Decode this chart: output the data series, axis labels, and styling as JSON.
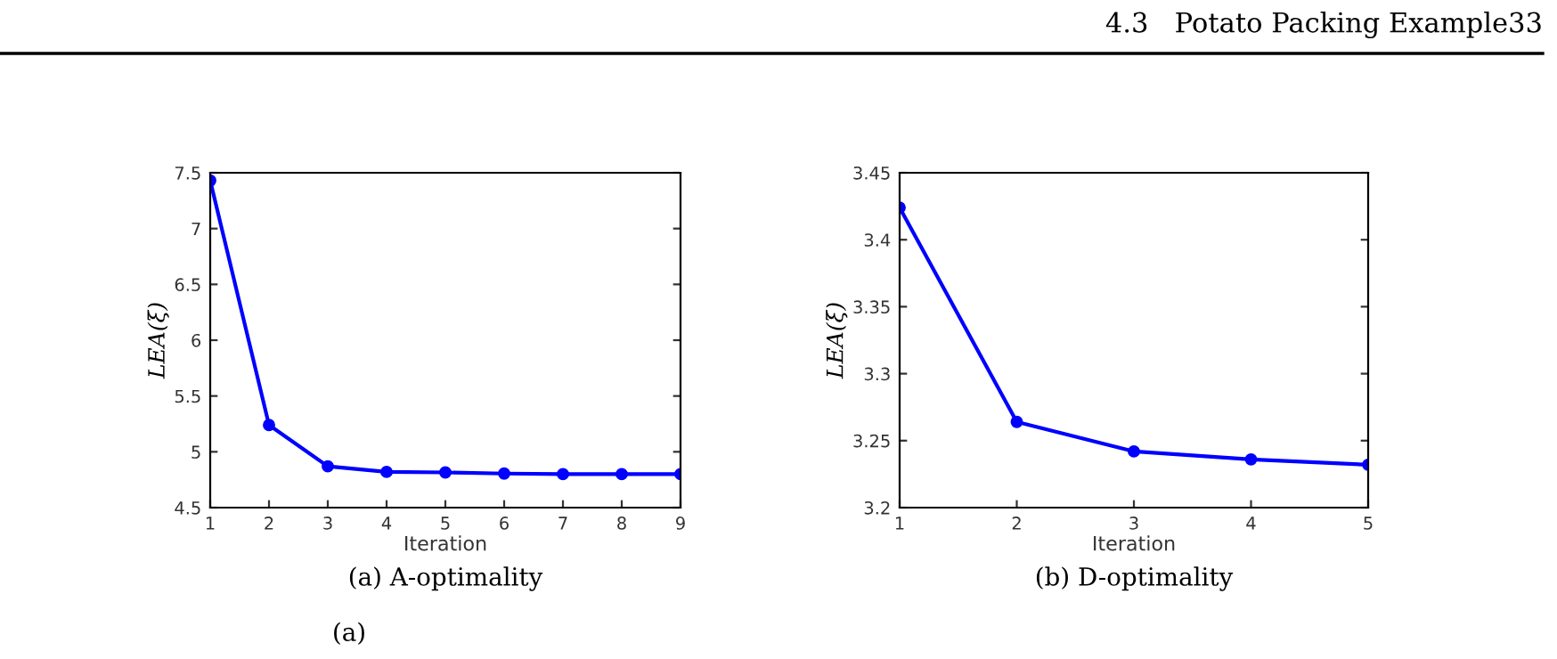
{
  "chart_data": [
    {
      "type": "line",
      "title": "(a) A-optimality",
      "xlabel": "Iteration",
      "ylabel": "LEA(ξ)",
      "x": [
        1,
        2,
        3,
        4,
        5,
        6,
        7,
        8,
        9
      ],
      "series": [
        {
          "color": "#0000ff",
          "values": [
            7.43,
            5.24,
            4.87,
            4.82,
            4.815,
            4.805,
            4.8,
            4.8,
            4.8
          ]
        }
      ],
      "xlim": [
        1,
        9
      ],
      "xticks": [
        1,
        2,
        3,
        4,
        5,
        6,
        7,
        8,
        9
      ],
      "ylim": [
        4.5,
        7.5
      ],
      "yticks": [
        4.5,
        5,
        5.5,
        6,
        6.5,
        7,
        7.5
      ],
      "marker": "circle",
      "line_style": "solid",
      "grid": false,
      "legend": false,
      "annotations": [
        "4.3   Potato Packing Example33",
        "(a)"
      ]
    },
    {
      "type": "line",
      "title": "(b) D-optimality",
      "xlabel": "Iteration",
      "ylabel": "LEA(ξ)",
      "x": [
        1,
        2,
        3,
        4,
        5
      ],
      "series": [
        {
          "color": "#0000ff",
          "values": [
            3.424,
            3.264,
            3.242,
            3.236,
            3.232
          ]
        }
      ],
      "xlim": [
        1,
        5
      ],
      "xticks": [
        1,
        2,
        3,
        4,
        5
      ],
      "ylim": [
        3.2,
        3.45
      ],
      "yticks": [
        3.2,
        3.25,
        3.3,
        3.35,
        3.4,
        3.45
      ],
      "marker": "circle",
      "line_style": "solid",
      "grid": false,
      "legend": false
    }
  ]
}
